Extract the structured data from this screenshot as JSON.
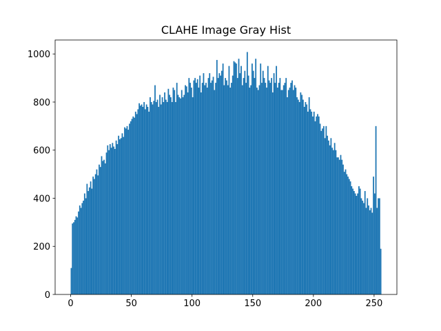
{
  "chart_data": {
    "type": "histogram",
    "title": "CLAHE Image Gray Hist",
    "color": "#1f77b4",
    "bins": [
      0,
      1,
      2,
      3,
      4,
      5,
      6,
      7,
      8,
      9,
      10,
      11,
      12,
      13,
      14,
      15,
      16,
      17,
      18,
      19,
      20,
      21,
      22,
      23,
      24,
      25,
      26,
      27,
      28,
      29,
      30,
      31,
      32,
      33,
      34,
      35,
      36,
      37,
      38,
      39,
      40,
      41,
      42,
      43,
      44,
      45,
      46,
      47,
      48,
      49,
      50,
      51,
      52,
      53,
      54,
      55,
      56,
      57,
      58,
      59,
      60,
      61,
      62,
      63,
      64,
      65,
      66,
      67,
      68,
      69,
      70,
      71,
      72,
      73,
      74,
      75,
      76,
      77,
      78,
      79,
      80,
      81,
      82,
      83,
      84,
      85,
      86,
      87,
      88,
      89,
      90,
      91,
      92,
      93,
      94,
      95,
      96,
      97,
      98,
      99,
      100,
      101,
      102,
      103,
      104,
      105,
      106,
      107,
      108,
      109,
      110,
      111,
      112,
      113,
      114,
      115,
      116,
      117,
      118,
      119,
      120,
      121,
      122,
      123,
      124,
      125,
      126,
      127,
      128,
      129,
      130,
      131,
      132,
      133,
      134,
      135,
      136,
      137,
      138,
      139,
      140,
      141,
      142,
      143,
      144,
      145,
      146,
      147,
      148,
      149,
      150,
      151,
      152,
      153,
      154,
      155,
      156,
      157,
      158,
      159,
      160,
      161,
      162,
      163,
      164,
      165,
      166,
      167,
      168,
      169,
      170,
      171,
      172,
      173,
      174,
      175,
      176,
      177,
      178,
      179,
      180,
      181,
      182,
      183,
      184,
      185,
      186,
      187,
      188,
      189,
      190,
      191,
      192,
      193,
      194,
      195,
      196,
      197,
      198,
      199,
      200,
      201,
      202,
      203,
      204,
      205,
      206,
      207,
      208,
      209,
      210,
      211,
      212,
      213,
      214,
      215,
      216,
      217,
      218,
      219,
      220,
      221,
      222,
      223,
      224,
      225,
      226,
      227,
      228,
      229,
      230,
      231,
      232,
      233,
      234,
      235,
      236,
      237,
      238,
      239,
      240,
      241,
      242,
      243,
      244,
      245,
      246,
      247,
      248,
      249,
      250,
      251,
      252,
      253,
      254,
      255,
      256
    ],
    "values": [
      110,
      295,
      300,
      310,
      325,
      320,
      345,
      370,
      360,
      380,
      390,
      420,
      400,
      460,
      430,
      445,
      470,
      440,
      490,
      480,
      500,
      520,
      495,
      540,
      530,
      575,
      555,
      560,
      545,
      590,
      620,
      600,
      625,
      610,
      630,
      615,
      605,
      640,
      625,
      660,
      645,
      650,
      670,
      655,
      695,
      690,
      700,
      685,
      710,
      720,
      730,
      740,
      735,
      760,
      750,
      770,
      795,
      785,
      790,
      780,
      800,
      770,
      790,
      780,
      760,
      820,
      800,
      790,
      805,
      870,
      800,
      810,
      780,
      830,
      790,
      820,
      800,
      840,
      810,
      800,
      855,
      830,
      820,
      800,
      860,
      850,
      800,
      880,
      830,
      820,
      815,
      850,
      820,
      830,
      870,
      865,
      840,
      900,
      880,
      860,
      820,
      890,
      900,
      880,
      895,
      860,
      910,
      840,
      880,
      920,
      870,
      880,
      860,
      900,
      920,
      880,
      890,
      905,
      850,
      880,
      975,
      900,
      920,
      910,
      930,
      960,
      870,
      900,
      890,
      870,
      950,
      860,
      880,
      910,
      970,
      965,
      960,
      900,
      980,
      920,
      950,
      870,
      900,
      930,
      880,
      1008,
      910,
      860,
      870,
      960,
      930,
      900,
      980,
      860,
      850,
      870,
      960,
      880,
      930,
      900,
      880,
      860,
      950,
      890,
      880,
      900,
      840,
      920,
      880,
      950,
      860,
      880,
      900,
      850,
      850,
      870,
      880,
      900,
      820,
      850,
      860,
      880,
      890,
      850,
      870,
      860,
      820,
      810,
      800,
      840,
      830,
      810,
      780,
      800,
      790,
      760,
      820,
      770,
      760,
      740,
      760,
      720,
      740,
      750,
      740,
      710,
      680,
      690,
      700,
      650,
      700,
      660,
      640,
      620,
      650,
      610,
      600,
      630,
      600,
      570,
      570,
      560,
      580,
      560,
      540,
      510,
      520,
      500,
      490,
      480,
      470,
      450,
      440,
      430,
      420,
      410,
      420,
      450,
      440,
      400,
      390,
      380,
      430,
      360,
      400,
      370,
      350,
      360,
      340,
      490,
      420,
      700,
      360,
      400,
      400,
      190
    ],
    "xlim": [
      -12.8,
      268.8
    ],
    "ylim": [
      0,
      1058
    ],
    "xticks": [
      0,
      50,
      100,
      150,
      200,
      250
    ],
    "yticks": [
      0,
      200,
      400,
      600,
      800,
      1000
    ]
  }
}
